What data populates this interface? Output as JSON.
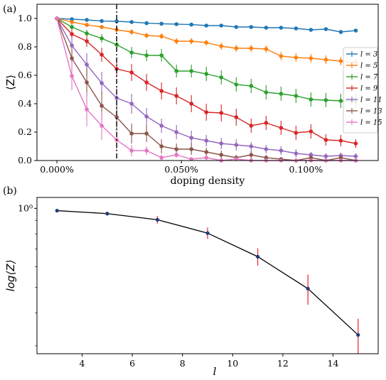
{
  "colors": {
    "l3": "#1f77b4",
    "l5": "#ff7f0e",
    "l7": "#2ca02c",
    "l9": "#d62728",
    "l11": "#9467bd",
    "l13": "#8c564b",
    "l15": "#e377c2",
    "line_b": "#000000",
    "marker_b": "#1f3b7a",
    "err_b": "#e8333a"
  },
  "chart_data": [
    {
      "panel_label": "(a)",
      "type": "line",
      "xlabel": "doping density",
      "ylabel": "⟨Z⟩",
      "xlim": [
        -8e-05,
        0.00129
      ],
      "ylim": [
        0.0,
        1.1
      ],
      "xticks": [
        0.0,
        0.0005,
        0.001
      ],
      "xtick_labels": [
        "0.000%",
        "0.050%",
        "0.100%"
      ],
      "yticks": [
        0.0,
        0.2,
        0.4,
        0.6,
        0.8,
        1.0
      ],
      "ytick_labels": [
        "0.0",
        "0.2",
        "0.4",
        "0.6",
        "0.8",
        "1.0"
      ],
      "vline_x": 0.00024,
      "legend_position": "right",
      "x": [
        0,
        6e-05,
        0.00012,
        0.00018,
        0.00024,
        0.0003,
        0.00036,
        0.00042,
        0.00048,
        0.00054,
        0.0006,
        0.00066,
        0.00072,
        0.00078,
        0.00084,
        0.0009,
        0.00096,
        0.00102,
        0.00108,
        0.00114,
        0.0012
      ],
      "series": [
        {
          "name": "l = 3",
          "color_key": "l3",
          "values": [
            1.0,
            0.995,
            0.99,
            0.982,
            0.98,
            0.975,
            0.967,
            0.963,
            0.96,
            0.957,
            0.95,
            0.95,
            0.94,
            0.94,
            0.935,
            0.935,
            0.93,
            0.92,
            0.925,
            0.905,
            0.915
          ],
          "errors": [
            0.0,
            0.01,
            0.01,
            0.01,
            0.01,
            0.01,
            0.01,
            0.01,
            0.01,
            0.01,
            0.01,
            0.01,
            0.01,
            0.01,
            0.01,
            0.01,
            0.01,
            0.01,
            0.01,
            0.015,
            0.01
          ]
        },
        {
          "name": "l = 5",
          "color_key": "l5",
          "values": [
            1.0,
            0.975,
            0.955,
            0.94,
            0.92,
            0.905,
            0.88,
            0.875,
            0.84,
            0.84,
            0.83,
            0.805,
            0.79,
            0.79,
            0.785,
            0.735,
            0.725,
            0.72,
            0.71,
            0.7,
            0.69
          ],
          "errors": [
            0.0,
            0.012,
            0.015,
            0.015,
            0.015,
            0.02,
            0.02,
            0.02,
            0.02,
            0.02,
            0.02,
            0.025,
            0.025,
            0.025,
            0.025,
            0.03,
            0.03,
            0.03,
            0.03,
            0.03,
            0.03
          ]
        },
        {
          "name": "l = 7",
          "color_key": "l7",
          "values": [
            1.0,
            0.94,
            0.895,
            0.86,
            0.815,
            0.76,
            0.74,
            0.74,
            0.63,
            0.63,
            0.61,
            0.585,
            0.535,
            0.525,
            0.48,
            0.47,
            0.455,
            0.43,
            0.425,
            0.42,
            0.42
          ],
          "errors": [
            0.0,
            0.02,
            0.025,
            0.03,
            0.035,
            0.04,
            0.04,
            0.045,
            0.045,
            0.045,
            0.05,
            0.05,
            0.05,
            0.05,
            0.05,
            0.05,
            0.05,
            0.05,
            0.05,
            0.05,
            0.05
          ]
        },
        {
          "name": "l = 9",
          "color_key": "l9",
          "values": [
            1.0,
            0.89,
            0.84,
            0.745,
            0.645,
            0.62,
            0.55,
            0.49,
            0.455,
            0.4,
            0.34,
            0.335,
            0.305,
            0.245,
            0.265,
            0.23,
            0.195,
            0.205,
            0.145,
            0.14,
            0.12
          ],
          "errors": [
            0.0,
            0.03,
            0.04,
            0.05,
            0.06,
            0.06,
            0.06,
            0.06,
            0.06,
            0.06,
            0.06,
            0.06,
            0.06,
            0.05,
            0.05,
            0.05,
            0.05,
            0.05,
            0.04,
            0.04,
            0.03
          ]
        },
        {
          "name": "l = 11",
          "color_key": "l11",
          "values": [
            1.0,
            0.81,
            0.675,
            0.545,
            0.44,
            0.4,
            0.31,
            0.245,
            0.2,
            0.16,
            0.14,
            0.12,
            0.11,
            0.1,
            0.08,
            0.07,
            0.05,
            0.04,
            0.03,
            0.035,
            0.03
          ],
          "errors": [
            0.0,
            0.05,
            0.08,
            0.08,
            0.08,
            0.07,
            0.06,
            0.05,
            0.05,
            0.05,
            0.04,
            0.04,
            0.04,
            0.03,
            0.03,
            0.03,
            0.03,
            0.02,
            0.02,
            0.02,
            0.02
          ]
        },
        {
          "name": "l = 13",
          "color_key": "l13",
          "values": [
            1.0,
            0.72,
            0.55,
            0.385,
            0.305,
            0.19,
            0.19,
            0.1,
            0.08,
            0.08,
            0.06,
            0.04,
            0.02,
            0.04,
            0.02,
            0.01,
            0.0,
            0.02,
            0.0,
            0.02,
            0.0
          ],
          "errors": [
            0.0,
            0.08,
            0.1,
            0.1,
            0.08,
            0.07,
            0.06,
            0.05,
            0.04,
            0.04,
            0.03,
            0.03,
            0.02,
            0.03,
            0.02,
            0.01,
            0.01,
            0.01,
            0.01,
            0.01,
            0.01
          ]
        },
        {
          "name": "l = 15",
          "color_key": "l15",
          "values": [
            1.0,
            0.595,
            0.36,
            0.245,
            0.145,
            0.07,
            0.07,
            0.02,
            0.04,
            0.01,
            0.02,
            0.0,
            0.01,
            0.0,
            0.0,
            0.0,
            0.0,
            0.0,
            0.0,
            0.0,
            0.0
          ],
          "errors": [
            0.0,
            0.1,
            0.12,
            0.1,
            0.07,
            0.04,
            0.03,
            0.02,
            0.02,
            0.01,
            0.01,
            0.01,
            0.01,
            0.005,
            0.005,
            0.005,
            0.005,
            0.005,
            0.005,
            0.005,
            0.005
          ]
        }
      ]
    },
    {
      "panel_label": "(b)",
      "type": "line",
      "xlabel": "l",
      "ylabel": "log⟨Z⟩",
      "yscale": "log",
      "xlim": [
        2.2,
        15.8
      ],
      "ylim": [
        0.28,
        1.1
      ],
      "xticks": [
        4,
        6,
        8,
        10,
        12,
        14
      ],
      "xtick_labels": [
        "4",
        "6",
        "8",
        "10",
        "12",
        "14"
      ],
      "yticks": [
        1.0
      ],
      "ytick_labels": [
        "10⁰"
      ],
      "minor_yticks": [
        0.3,
        0.4,
        0.5,
        0.6,
        0.7,
        0.8,
        0.9
      ],
      "x": [
        3,
        5,
        7,
        9,
        11,
        13,
        15
      ],
      "values": [
        0.98,
        0.955,
        0.905,
        0.805,
        0.655,
        0.495,
        0.33
      ],
      "errors": [
        0.01,
        0.015,
        0.03,
        0.04,
        0.05,
        0.065,
        0.05
      ]
    }
  ]
}
